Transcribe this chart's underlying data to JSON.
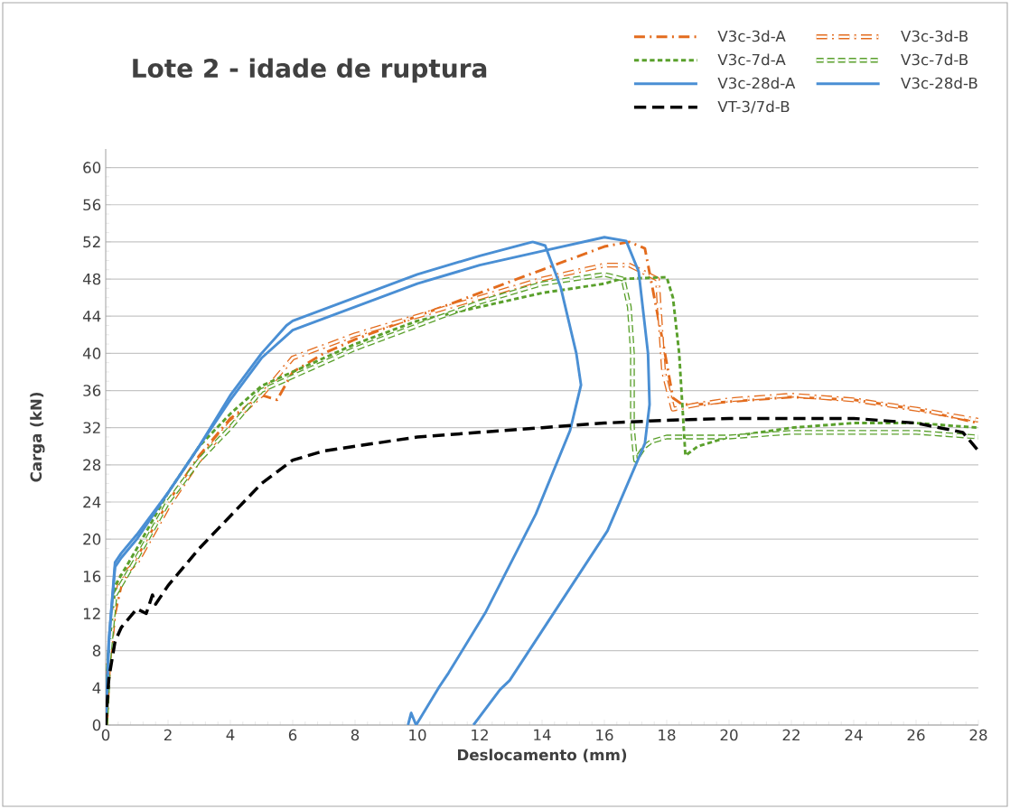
{
  "chart_data": {
    "type": "line",
    "title": "Lote 2 - idade de ruptura",
    "xlabel": "Deslocamento (mm)",
    "ylabel": "Carga (kN)",
    "xlim": [
      0,
      28
    ],
    "xticks": [
      0,
      2,
      4,
      6,
      8,
      10,
      12,
      14,
      16,
      18,
      20,
      22,
      24,
      26,
      28
    ],
    "ylim": [
      0,
      62
    ],
    "yticks": [
      0,
      4,
      8,
      12,
      16,
      20,
      24,
      28,
      32,
      36,
      40,
      44,
      48,
      52,
      56,
      60
    ],
    "grid": "y",
    "legend": "top right",
    "series": [
      {
        "name": "V3c-3d-A",
        "color": "#e36c1e",
        "line_style": "dashdot",
        "x": [
          0,
          0.1,
          0.3,
          0.5,
          1,
          2,
          3,
          4,
          5,
          5.5,
          6,
          7,
          8,
          10,
          12,
          14,
          16,
          16.8,
          17.3,
          17.5,
          17.9,
          18.2,
          18.5,
          19,
          20,
          22,
          24,
          26,
          28
        ],
        "values": [
          0,
          6,
          12,
          15,
          18,
          24,
          29,
          33,
          35.5,
          35,
          38,
          40,
          41.5,
          44,
          46.5,
          49,
          51.5,
          52,
          51.3,
          47.8,
          40.8,
          35.2,
          34.5,
          34.5,
          34.8,
          35.3,
          35,
          34,
          32.5
        ]
      },
      {
        "name": "V3c-3d-B",
        "color": "#e36c1e",
        "line_style": "double dashdot",
        "x": [
          0,
          0.1,
          0.3,
          0.5,
          1,
          2,
          3,
          4,
          5,
          6,
          8,
          10,
          12,
          14,
          16,
          16.8,
          17.7,
          17.9,
          18.2,
          19,
          20,
          22,
          24,
          26,
          28
        ],
        "values": [
          0,
          7,
          13,
          16,
          17.5,
          23.5,
          28.5,
          32.5,
          35.5,
          39.5,
          42,
          44,
          46,
          48,
          49.5,
          49.5,
          48,
          38,
          34,
          34.5,
          35,
          35.5,
          35,
          34,
          32.8
        ]
      },
      {
        "name": "V3c-7d-A",
        "color": "#5aa02c",
        "line_style": "dashed",
        "x": [
          0,
          0.1,
          0.3,
          1,
          2,
          3,
          4,
          5,
          6,
          8,
          10,
          12,
          14,
          16,
          16.5,
          18,
          18.2,
          18.4,
          18.6,
          19,
          20,
          22,
          24,
          26,
          28
        ],
        "values": [
          0,
          8,
          15,
          19,
          25,
          30,
          33.5,
          36.5,
          38,
          41,
          43.5,
          45,
          46.5,
          47.5,
          48,
          48.2,
          46,
          40,
          29,
          30,
          31,
          32,
          32.5,
          32.5,
          32
        ]
      },
      {
        "name": "V3c-7d-B",
        "color": "#5aa02c",
        "line_style": "double dashed",
        "x": [
          0,
          0.1,
          0.3,
          1,
          2,
          3,
          4,
          5,
          6,
          8,
          10,
          12,
          14,
          16,
          16.6,
          16.8,
          16.9,
          16.9,
          17,
          17.3,
          17.5,
          18,
          20,
          22,
          24,
          26,
          28
        ],
        "values": [
          0,
          7,
          14,
          18,
          24,
          28.5,
          32,
          36,
          37.5,
          40.5,
          43,
          45.5,
          47.5,
          48.5,
          48,
          45,
          40,
          32,
          28.5,
          30,
          30.5,
          31,
          31,
          31.5,
          31.5,
          31.5,
          31
        ]
      },
      {
        "name": "V3c-28d-A",
        "color": "#4a8fd4",
        "line_style": "solid",
        "x": [
          0,
          0.1,
          0.3,
          0.5,
          1,
          2,
          3,
          4,
          5,
          5.8,
          6,
          8,
          10,
          12,
          13.7,
          14.1,
          14.6,
          15.1,
          15.25,
          14.9,
          13.8,
          12.2,
          11,
          10.7,
          9.96,
          9.8,
          9.7
        ],
        "values": [
          0,
          9,
          17,
          18,
          20,
          25,
          30,
          35.5,
          40,
          43,
          43.5,
          46,
          48.5,
          50.5,
          52,
          51.6,
          47.1,
          40,
          36.6,
          31.7,
          22.7,
          12.2,
          5.6,
          4.1,
          0,
          1.3,
          0
        ]
      },
      {
        "name": "V3c-28d-B",
        "color": "#4a8fd4",
        "line_style": "solid",
        "x": [
          0,
          0.1,
          0.3,
          0.5,
          1,
          2,
          3,
          4,
          5,
          6,
          8,
          10,
          12,
          14,
          16,
          16.7,
          17.1,
          17.4,
          17.45,
          17.3,
          16.1,
          12.96,
          12.65,
          11.8
        ],
        "values": [
          0,
          9,
          17.5,
          18.5,
          20.5,
          25,
          30,
          35,
          39.5,
          42.5,
          45,
          47.5,
          49.5,
          51,
          52.5,
          52.1,
          48.8,
          40,
          34.5,
          30.3,
          20.9,
          4.8,
          3.8,
          0
        ]
      },
      {
        "name": "VT-3/7d-B",
        "color": "#000000",
        "line_style": "loosely dashed",
        "x": [
          0,
          0.1,
          0.3,
          0.5,
          1,
          1.3,
          1.5,
          1.6,
          2,
          3,
          4,
          5,
          6,
          7,
          8,
          10,
          12,
          14,
          16,
          18,
          20,
          22,
          24,
          26,
          27.5,
          28
        ],
        "values": [
          0,
          5,
          9,
          10.5,
          12.5,
          12,
          14,
          13,
          15,
          19,
          22.5,
          26,
          28.5,
          29.5,
          30,
          31,
          31.5,
          32,
          32.5,
          32.8,
          33,
          33,
          33,
          32.5,
          31.5,
          29.5
        ]
      }
    ]
  }
}
